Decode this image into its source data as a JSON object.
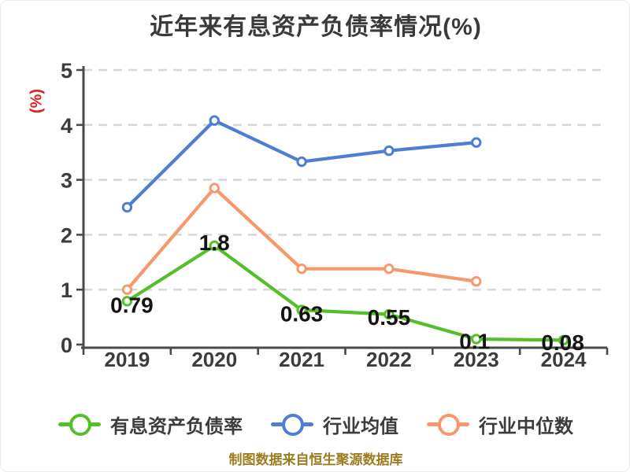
{
  "title": "近年来有息资产负债率情况(%)",
  "footer": "制图数据来自恒生聚源数据库",
  "palette": {
    "title_text": "#3a3a3a",
    "ylabel_red": "#e01f1f",
    "footer_gold": "#9d7c1e",
    "axis_line": "#4a4a4a",
    "tick_text": "#3c3c3c",
    "grid_line": "#d8d8d8",
    "data_label": "#141414",
    "marker_fill": "#ffffff"
  },
  "chart_data": {
    "type": "line",
    "title": "近年来有息资产负债率情况(%)",
    "xlabel": "",
    "ylabel": "(%)",
    "categories": [
      "2019",
      "2020",
      "2021",
      "2022",
      "2023",
      "2024"
    ],
    "yticks": [
      0,
      1,
      2,
      3,
      4,
      5
    ],
    "ylim": [
      0,
      5
    ],
    "grid": "horizontal-dashed",
    "legend_position": "bottom",
    "series": [
      {
        "name": "有息资产负债率",
        "color": "#54bf28",
        "values": [
          0.79,
          1.8,
          0.63,
          0.55,
          0.1,
          0.08
        ],
        "point_labels": [
          "0.79",
          "1.8",
          "0.63",
          "0.55",
          "0.1",
          "0.08"
        ]
      },
      {
        "name": "行业均值",
        "color": "#4d7ed2",
        "values": [
          2.5,
          4.08,
          3.33,
          3.53,
          3.68,
          null
        ],
        "point_labels": null
      },
      {
        "name": "行业中位数",
        "color": "#f9976c",
        "values": [
          1.0,
          2.85,
          1.38,
          1.38,
          1.15,
          null
        ],
        "point_labels": null
      }
    ]
  }
}
